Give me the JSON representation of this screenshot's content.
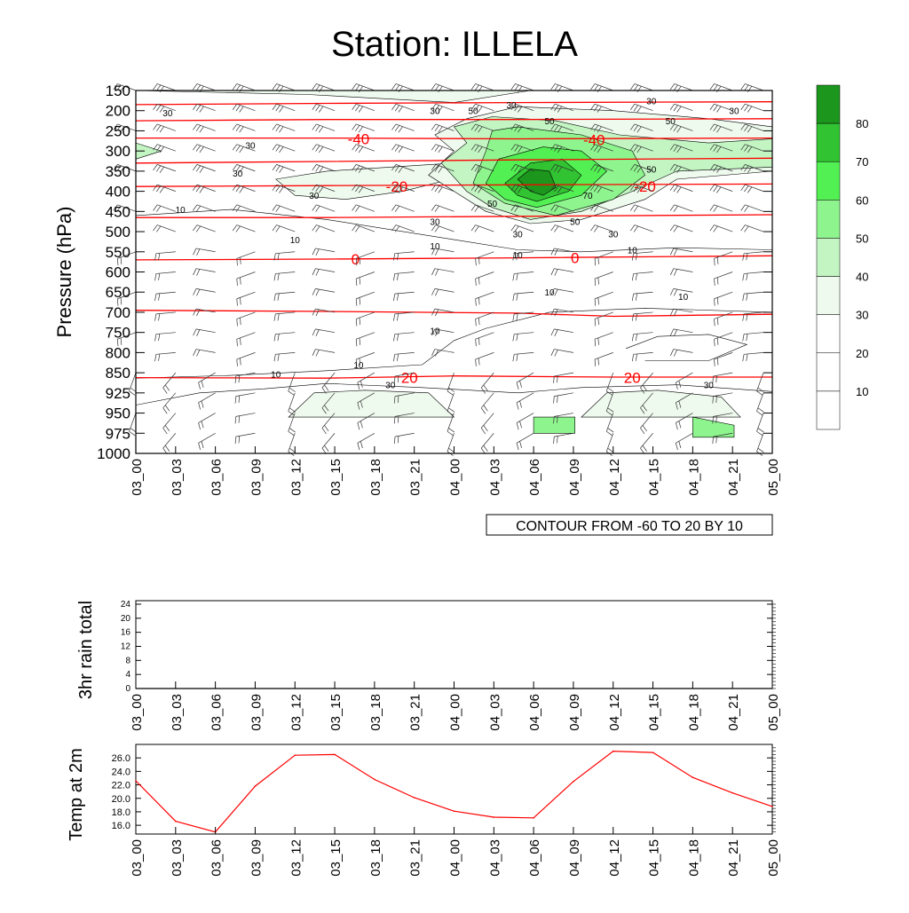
{
  "title": "Station: ILLELA",
  "colors": {
    "temp_contour": "#ff0000",
    "line": "#000000",
    "shade_levels": [
      "#ffffff",
      "#ffffff",
      "#ffffff",
      "#eefaee",
      "#c3f5c3",
      "#8ef58e",
      "#52f052",
      "#31c331",
      "#1c961c"
    ]
  },
  "time_labels": [
    "03_00",
    "03_03",
    "03_06",
    "03_09",
    "03_12",
    "03_15",
    "03_18",
    "03_21",
    "04_00",
    "04_03",
    "04_06",
    "04_09",
    "04_12",
    "04_15",
    "04_18",
    "04_21",
    "05_00"
  ],
  "chart_data": [
    {
      "type": "heatmap",
      "ylabel": "Pressure (hPa)",
      "y_ticks": [
        150,
        200,
        250,
        300,
        350,
        400,
        450,
        500,
        550,
        600,
        650,
        700,
        750,
        800,
        850,
        925,
        950,
        975,
        1000
      ],
      "info_label": "CONTOUR FROM -60 TO 20 BY 10",
      "colorbar": {
        "levels": [
          10,
          20,
          30,
          40,
          50,
          60,
          70,
          80
        ],
        "tick_labels": [
          "10",
          "20",
          "30",
          "40",
          "50",
          "60",
          "70",
          "80"
        ]
      },
      "temperature_contours": [
        {
          "level": -40,
          "labels": [
            "-40",
            "-40"
          ]
        },
        {
          "level": -20,
          "labels": [
            "-20",
            "-20"
          ]
        },
        {
          "level": 0,
          "labels": [
            "0",
            "0"
          ]
        },
        {
          "level": 20,
          "labels": [
            "20",
            "20"
          ]
        }
      ],
      "humidity_contour_labels": [
        "10",
        "30",
        "50",
        "70"
      ],
      "wind_barbs": true
    },
    {
      "type": "line",
      "ylabel": "3hr rain total",
      "y_ticks": [
        0,
        4,
        8,
        12,
        16,
        20,
        24
      ],
      "ylim": [
        0,
        25
      ],
      "values": [
        0,
        0,
        0,
        0,
        0,
        0,
        0,
        0,
        0,
        0,
        0,
        0,
        0,
        0,
        0,
        0,
        0
      ]
    },
    {
      "type": "line",
      "ylabel": "Temp at 2m",
      "y_ticks": [
        "16.0",
        "18.0",
        "20.0",
        "22.0",
        "24.0",
        "26.0"
      ],
      "ylim": [
        14.7,
        28.0
      ],
      "values": [
        22.6,
        16.6,
        15.0,
        21.8,
        26.4,
        26.5,
        22.8,
        20.1,
        18.1,
        17.2,
        17.1,
        22.5,
        27.0,
        26.8,
        23.1,
        20.8,
        18.8
      ]
    }
  ]
}
